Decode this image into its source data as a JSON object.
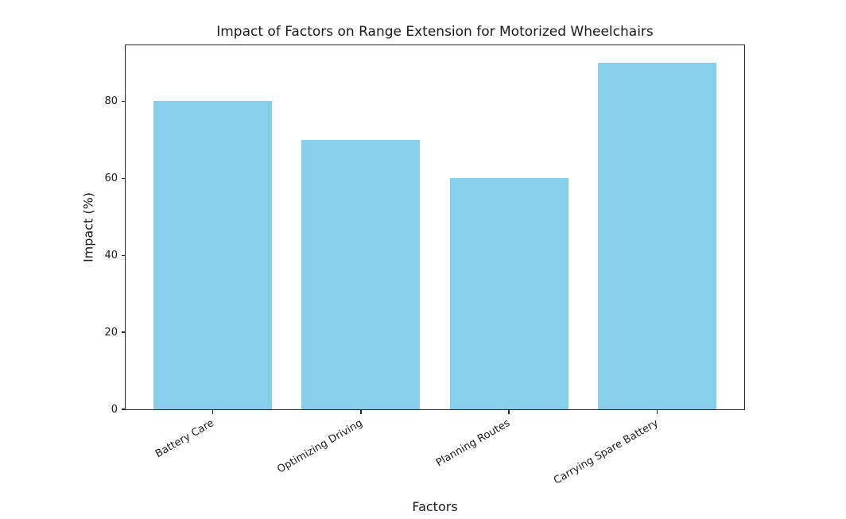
{
  "chart_data": {
    "type": "bar",
    "title": "Impact of Factors on Range Extension for Motorized Wheelchairs",
    "xlabel": "Factors",
    "ylabel": "Impact (%)",
    "categories": [
      "Battery Care",
      "Optimizing Driving",
      "Planning Routes",
      "Carrying Spare Battery"
    ],
    "values": [
      80,
      70,
      60,
      90
    ],
    "yticks": [
      0,
      20,
      40,
      60,
      80
    ],
    "ylim": [
      0,
      94.5
    ],
    "xlim": [
      -0.59,
      3.59
    ],
    "bar_width": 0.8,
    "xtick_rotation_deg": 30,
    "grid": false,
    "legend_position": "none",
    "bar_color": "#87CEEB",
    "axis_color": "#262626",
    "text_color": "#1a1a1a",
    "background_color": "#ffffff"
  }
}
